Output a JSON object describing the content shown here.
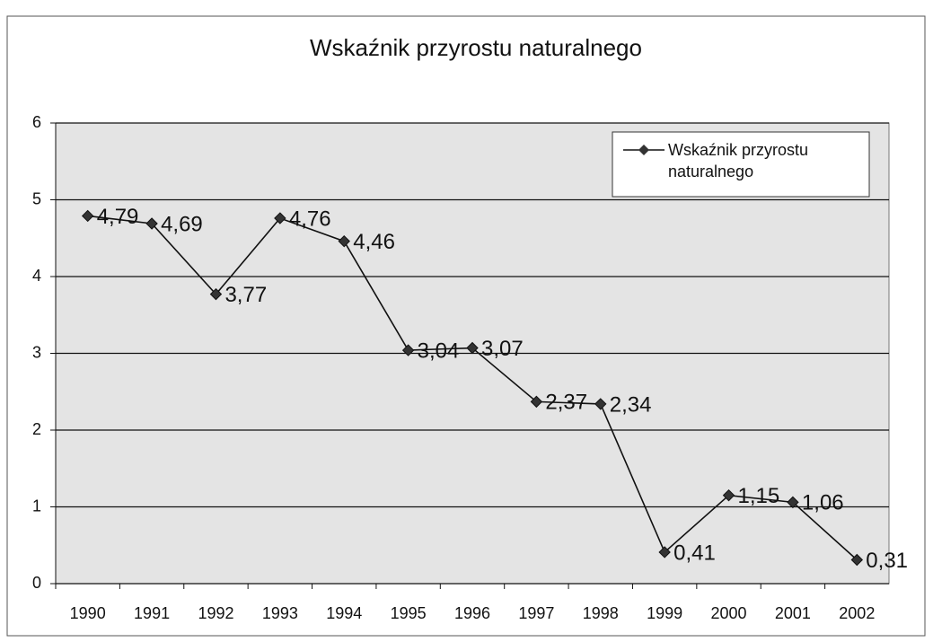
{
  "chart_data": {
    "type": "line",
    "title": "Wskaźnik przyrostu naturalnego",
    "categories": [
      "1990",
      "1991",
      "1992",
      "1993",
      "1994",
      "1995",
      "1996",
      "1997",
      "1998",
      "1999",
      "2000",
      "2001",
      "2002"
    ],
    "series": [
      {
        "name": "Wskaźnik przyrostu naturalnego",
        "color": "#111111",
        "values": [
          4.79,
          4.69,
          3.77,
          4.76,
          4.46,
          3.04,
          3.07,
          2.37,
          2.34,
          0.41,
          1.15,
          1.06,
          0.31
        ],
        "value_labels": [
          "4,79",
          "4,69",
          "3,77",
          "4,76",
          "4,46",
          "3,04",
          "3,07",
          "2,37",
          "2,34",
          "0,41",
          "1,15",
          "1,06",
          "0,31"
        ]
      }
    ],
    "ylim": [
      0,
      6
    ],
    "yticks": [
      0,
      1,
      2,
      3,
      4,
      5,
      6
    ],
    "grid": true,
    "legend": "top-right"
  }
}
